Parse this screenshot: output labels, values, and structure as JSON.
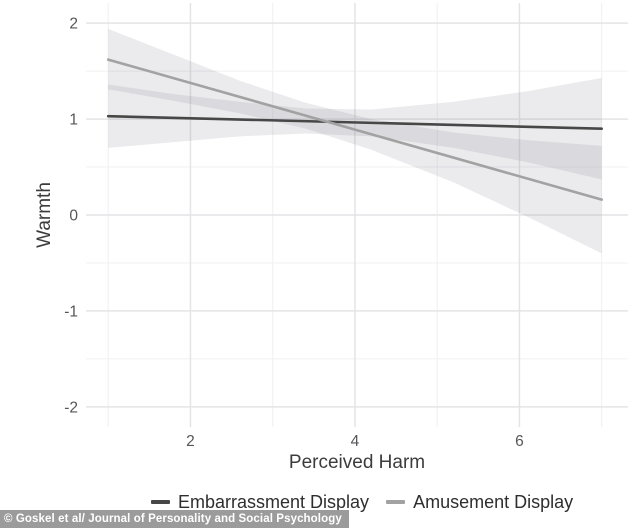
{
  "figure": {
    "y_axis_label": "Warmth",
    "x_axis_label": "Perceived Harm",
    "caption": "© Goskel et al/ Journal of Personality and Social Psychology"
  },
  "legend": {
    "items": [
      {
        "label": "Embarrassment Display",
        "color": "#474747"
      },
      {
        "label": "Amusement Display",
        "color": "#a2a2a2"
      }
    ]
  },
  "chart_data": {
    "type": "line",
    "title": "",
    "xlabel": "Perceived Harm",
    "ylabel": "Warmth",
    "xlim": [
      0.73,
      7.32
    ],
    "ylim": [
      -2.21,
      2.21
    ],
    "x_major_ticks": [
      2,
      4,
      6
    ],
    "x_minor_ticks": [
      1,
      3,
      5,
      7
    ],
    "y_major_ticks": [
      -2,
      -1,
      0,
      1,
      2
    ],
    "y_minor_ticks": [
      -1.5,
      -0.5,
      0.5,
      1.5
    ],
    "grid": true,
    "legend_position": "bottom",
    "colors": {
      "grid_major": "#e4e4e6",
      "grid_minor": "#f0f0f2",
      "band_fill": "#85858d",
      "tick_text": "#56565a",
      "axis_title_text": "#3c3c3c"
    },
    "band_opacity": 0.16,
    "series": [
      {
        "name": "Embarrassment Display",
        "color": "#474747",
        "x": [
          1,
          7
        ],
        "y": [
          1.03,
          0.9
        ],
        "band": {
          "x": [
            1.0,
            1.8,
            2.6,
            3.4,
            4.2,
            5.2,
            6.1,
            7.0
          ],
          "upper": [
            1.36,
            1.26,
            1.18,
            1.11,
            1.1,
            1.18,
            1.29,
            1.43
          ],
          "lower": [
            0.7,
            0.76,
            0.82,
            0.85,
            0.82,
            0.7,
            0.55,
            0.37
          ]
        }
      },
      {
        "name": "Amusement Display",
        "color": "#a2a2a2",
        "x": [
          1,
          7
        ],
        "y": [
          1.62,
          0.16
        ],
        "band": {
          "x": [
            1.0,
            1.8,
            2.6,
            3.4,
            4.2,
            5.2,
            6.1,
            7.0
          ],
          "upper": [
            1.94,
            1.67,
            1.4,
            1.17,
            1.0,
            0.86,
            0.78,
            0.72
          ],
          "lower": [
            1.31,
            1.19,
            1.06,
            0.9,
            0.68,
            0.34,
            -0.02,
            -0.4
          ]
        }
      }
    ]
  }
}
